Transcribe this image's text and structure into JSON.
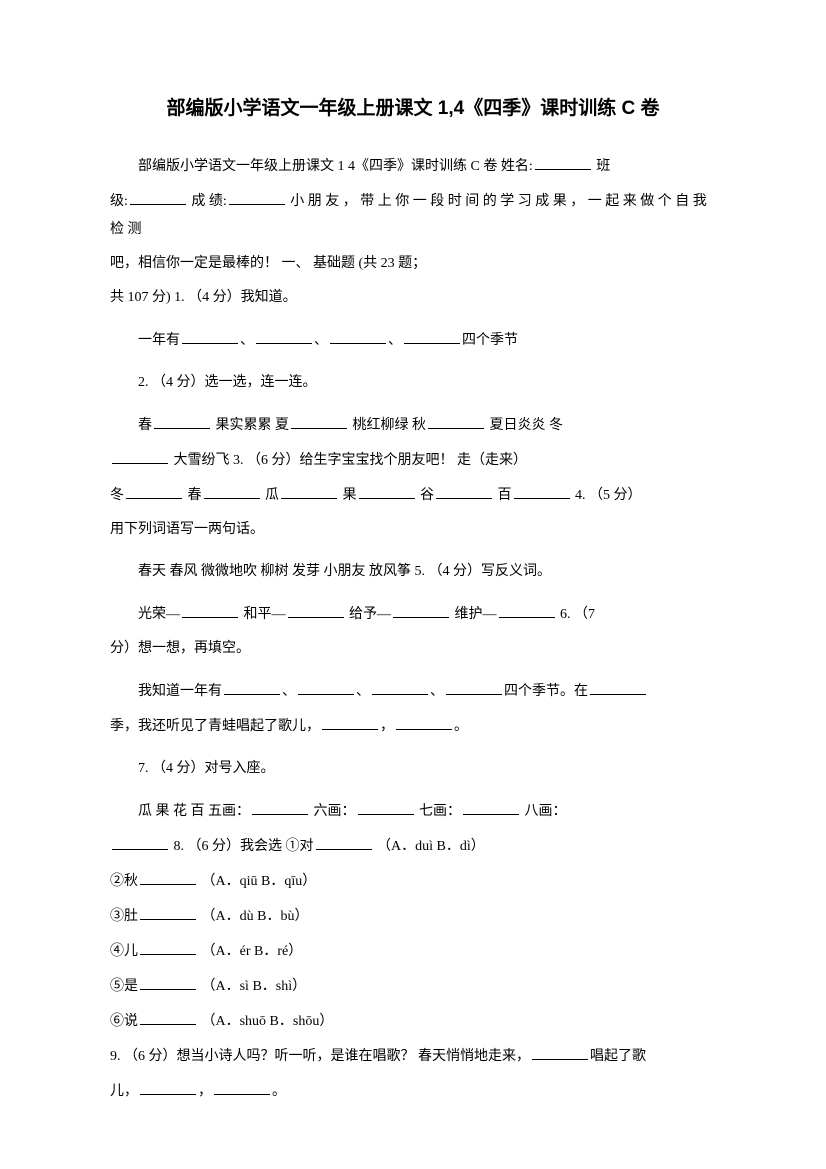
{
  "title": "部编版小学语文一年级上册课文 1,4《四季》课时训练 C 卷",
  "intro": {
    "line1_prefix": "部编版小学语文一年级上册课文 1 4《四季》课时训练 C 卷 姓名:",
    "line1_ban": " 班",
    "line2_ji": "级:",
    "line2_chengji": " 成 绩:",
    "line2_rest": " 小 朋 友 ， 带 上 你 一 段 时 间 的 学 习 成 果 ， 一 起 来 做 个 自 我 检 测",
    "line3": "吧，相信你一定是最棒的！ 一、 基础题 (共 23 题；",
    "line4": "共 107 分) 1. （4 分）我知道。"
  },
  "q1": {
    "prefix": "一年有",
    "sep": "、",
    "suffix": "四个季节"
  },
  "q2": {
    "header": "2. （4 分）选一选，连一连。",
    "spring": "春",
    "fruit": " 果实累累 夏",
    "peach": " 桃红柳绿 秋",
    "summer": " 夏日炎炎 冬",
    "snow": " 大雪纷飞 3. （6 分）给生字宝宝找个朋友吧！ 走（走来）"
  },
  "q3": {
    "dong": "冬",
    "chun": " 春",
    "gua": " 瓜",
    "guo": " 果",
    "gu": " 谷",
    "bai": " 百",
    "suffix": " 4. （5 分）"
  },
  "q4": {
    "line": "用下列词语写一两句话。",
    "words": "春天  春风  微微地吹  柳树  发芽  小朋友  放风筝 5. （4 分）写反义词。"
  },
  "q5": {
    "guangrong": "光荣—",
    "heping": " 和平—",
    "geiyu": " 给予—",
    "weihu": " 维护—",
    "suffix": " 6. （7"
  },
  "q6": {
    "header": "分）想一想，再填空。",
    "line1_prefix": "我知道一年有",
    "sep": "、",
    "line1_suffix": "四个季节。在",
    "line2_prefix": "季，我还听见了青蛙唱起了歌儿，",
    "comma": "，",
    "period": "。"
  },
  "q7": {
    "header": "7. （4 分）对号入座。",
    "line1_prefix": "瓜 果 花 百 五画：",
    "six": " 六画：",
    "seven": " 七画：",
    "eight": " 八画：",
    "line2": " 8. （6 分）我会选 ①对",
    "opt1": " （A．duì B．dì）"
  },
  "q8": {
    "item2_prefix": "②秋",
    "item2_opt": " （A．qiū B．qīu）",
    "item3_prefix": "③肚",
    "item3_opt": " （A．dù B．bù）",
    "item4_prefix": "④儿",
    "item4_opt": " （A．ér B．ré）",
    "item5_prefix": "⑤是",
    "item5_opt": " （A．sì B．shì）",
    "item6_prefix": "⑥说",
    "item6_opt": " （A．shuō B．shōu）"
  },
  "q9": {
    "line1": "9. （6 分）想当小诗人吗？听一听，是谁在唱歌？ 春天悄悄地走来，",
    "suffix1": "唱起了歌",
    "line2_prefix": "儿，",
    "comma": "，",
    "period": "。"
  }
}
